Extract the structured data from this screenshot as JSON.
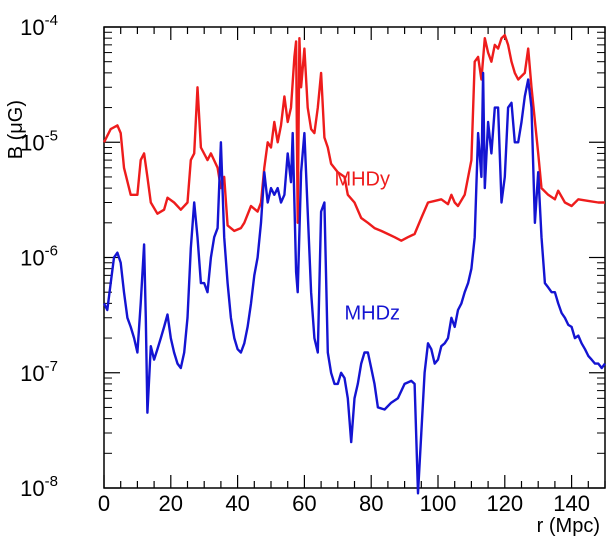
{
  "chart_data": {
    "type": "line",
    "xlabel": "r (Mpc)",
    "ylabel": "B (μG)",
    "xlim": [
      0,
      150
    ],
    "ylim": [
      1e-08,
      0.0001
    ],
    "yscale": "log",
    "grid": false,
    "x_ticks": [
      {
        "value": 0,
        "label": "0"
      },
      {
        "value": 20,
        "label": "20"
      },
      {
        "value": 40,
        "label": "40"
      },
      {
        "value": 60,
        "label": "60"
      },
      {
        "value": 80,
        "label": "80"
      },
      {
        "value": 100,
        "label": "100"
      },
      {
        "value": 120,
        "label": "120"
      },
      {
        "value": 140,
        "label": "140"
      }
    ],
    "y_ticks": [
      {
        "value": 1e-08,
        "base": "10",
        "exp": "-8"
      },
      {
        "value": 1e-07,
        "base": "10",
        "exp": "-7"
      },
      {
        "value": 1e-06,
        "base": "10",
        "exp": "-6"
      },
      {
        "value": 1e-05,
        "base": "10",
        "exp": "-5"
      },
      {
        "value": 0.0001,
        "base": "10",
        "exp": "-4"
      }
    ],
    "series": [
      {
        "name": "MHDy",
        "color": "#ee1c1c",
        "label_at": [
          69,
          4.2e-06
        ],
        "points": [
          [
            0,
            1e-05
          ],
          [
            2,
            1.3e-05
          ],
          [
            4,
            1.4e-05
          ],
          [
            5,
            1.2e-05
          ],
          [
            6,
            6e-06
          ],
          [
            8,
            3.5e-06
          ],
          [
            10,
            3.5e-06
          ],
          [
            11,
            7e-06
          ],
          [
            12,
            8e-06
          ],
          [
            13,
            5e-06
          ],
          [
            14,
            3e-06
          ],
          [
            16,
            2.4e-06
          ],
          [
            18,
            2.6e-06
          ],
          [
            19,
            3.3e-06
          ],
          [
            21,
            3e-06
          ],
          [
            23,
            2.6e-06
          ],
          [
            25,
            3e-06
          ],
          [
            26,
            7e-06
          ],
          [
            27,
            8e-06
          ],
          [
            28,
            3e-05
          ],
          [
            29,
            9e-06
          ],
          [
            31,
            7e-06
          ],
          [
            32,
            8e-06
          ],
          [
            34,
            6e-06
          ],
          [
            35,
            4e-06
          ],
          [
            36,
            5e-06
          ],
          [
            37,
            1.9e-06
          ],
          [
            39,
            1.7e-06
          ],
          [
            41,
            1.8e-06
          ],
          [
            42,
            2e-06
          ],
          [
            44,
            2.8e-06
          ],
          [
            46,
            2.5e-06
          ],
          [
            47,
            3e-06
          ],
          [
            48,
            6e-06
          ],
          [
            49,
            1e-05
          ],
          [
            50,
            9e-06
          ],
          [
            51,
            1.5e-05
          ],
          [
            52,
            1e-05
          ],
          [
            53,
            1.4e-05
          ],
          [
            54,
            2.5e-05
          ],
          [
            55,
            1.5e-05
          ],
          [
            56,
            2e-05
          ],
          [
            57,
            5.5e-05
          ],
          [
            57.5,
            7.5e-05
          ],
          [
            58,
            2e-06
          ],
          [
            58.5,
            8e-05
          ],
          [
            59,
            3e-05
          ],
          [
            60,
            6.5e-05
          ],
          [
            61,
            2e-05
          ],
          [
            62,
            1.3e-05
          ],
          [
            63,
            1.2e-05
          ],
          [
            64,
            2e-05
          ],
          [
            65,
            4e-05
          ],
          [
            66,
            1.1e-05
          ],
          [
            67,
            9e-06
          ],
          [
            68,
            6.5e-06
          ],
          [
            70,
            5.5e-06
          ],
          [
            72,
            5e-06
          ],
          [
            73,
            3.5e-06
          ],
          [
            75,
            3e-06
          ],
          [
            77,
            2.2e-06
          ],
          [
            79,
            2e-06
          ],
          [
            81,
            1.8e-06
          ],
          [
            83,
            1.7e-06
          ],
          [
            85,
            1.6e-06
          ],
          [
            87,
            1.5e-06
          ],
          [
            89,
            1.4e-06
          ],
          [
            91,
            1.5e-06
          ],
          [
            93,
            1.6e-06
          ],
          [
            95,
            2.2e-06
          ],
          [
            97,
            3e-06
          ],
          [
            99,
            3.1e-06
          ],
          [
            101,
            3.2e-06
          ],
          [
            103,
            2.9e-06
          ],
          [
            104,
            3.5e-06
          ],
          [
            105,
            3e-06
          ],
          [
            106,
            2.8e-06
          ],
          [
            108,
            3.5e-06
          ],
          [
            110,
            7e-06
          ],
          [
            111,
            5e-05
          ],
          [
            112,
            5.5e-05
          ],
          [
            113,
            3.5e-05
          ],
          [
            114,
            8e-05
          ],
          [
            115,
            6e-05
          ],
          [
            116,
            5e-05
          ],
          [
            117,
            7e-05
          ],
          [
            118,
            6.5e-05
          ],
          [
            119,
            8e-05
          ],
          [
            120,
            8.5e-05
          ],
          [
            121,
            7e-05
          ],
          [
            122,
            5e-05
          ],
          [
            123,
            4e-05
          ],
          [
            124,
            3.5e-05
          ],
          [
            126,
            4e-05
          ],
          [
            127,
            6.5e-05
          ],
          [
            128,
            3e-05
          ],
          [
            130,
            8e-06
          ],
          [
            131,
            4e-06
          ],
          [
            133,
            3.5e-06
          ],
          [
            135,
            3.2e-06
          ],
          [
            136,
            3.8e-06
          ],
          [
            138,
            3e-06
          ],
          [
            140,
            2.8e-06
          ],
          [
            142,
            3.2e-06
          ],
          [
            145,
            3.1e-06
          ],
          [
            148,
            3e-06
          ],
          [
            150,
            3e-06
          ]
        ]
      },
      {
        "name": "MHDz",
        "color": "#1414d2",
        "label_at": [
          72,
          2.9e-07
        ],
        "points": [
          [
            0,
            4e-07
          ],
          [
            1,
            3.5e-07
          ],
          [
            2,
            6e-07
          ],
          [
            3,
            1e-06
          ],
          [
            4,
            1.1e-06
          ],
          [
            5,
            9e-07
          ],
          [
            6,
            5e-07
          ],
          [
            7,
            3e-07
          ],
          [
            8,
            2.5e-07
          ],
          [
            9,
            2e-07
          ],
          [
            10,
            1.5e-07
          ],
          [
            11,
            4e-07
          ],
          [
            12,
            1.3e-06
          ],
          [
            12.5,
            3e-07
          ],
          [
            13,
            4.5e-08
          ],
          [
            14,
            1.7e-07
          ],
          [
            15,
            1.3e-07
          ],
          [
            16,
            1.6e-07
          ],
          [
            17,
            2e-07
          ],
          [
            18,
            2.5e-07
          ],
          [
            19,
            3.2e-07
          ],
          [
            20,
            2e-07
          ],
          [
            21,
            1.5e-07
          ],
          [
            22,
            1.2e-07
          ],
          [
            23,
            1.1e-07
          ],
          [
            24,
            1.5e-07
          ],
          [
            25,
            3e-07
          ],
          [
            26,
            1.2e-06
          ],
          [
            27,
            3e-06
          ],
          [
            28,
            1.5e-06
          ],
          [
            29,
            6e-07
          ],
          [
            30,
            6e-07
          ],
          [
            31,
            5e-07
          ],
          [
            32,
            1e-06
          ],
          [
            33,
            1.5e-06
          ],
          [
            34,
            1.8e-06
          ],
          [
            35,
            1e-05
          ],
          [
            36,
            1.5e-06
          ],
          [
            37,
            6e-07
          ],
          [
            38,
            3e-07
          ],
          [
            39,
            2e-07
          ],
          [
            40,
            1.6e-07
          ],
          [
            41,
            1.5e-07
          ],
          [
            42,
            1.8e-07
          ],
          [
            43,
            2.5e-07
          ],
          [
            44,
            4e-07
          ],
          [
            45,
            7e-07
          ],
          [
            46,
            1e-06
          ],
          [
            47,
            2e-06
          ],
          [
            48,
            5.5e-06
          ],
          [
            49,
            3e-06
          ],
          [
            50,
            4e-06
          ],
          [
            51,
            3.5e-06
          ],
          [
            52,
            4e-06
          ],
          [
            53,
            3e-06
          ],
          [
            54,
            3.5e-06
          ],
          [
            55,
            8e-06
          ],
          [
            56,
            4.5e-06
          ],
          [
            56.5,
            1.2e-05
          ],
          [
            57,
            3e-06
          ],
          [
            57.5,
            7.5e-07
          ],
          [
            58,
            5e-07
          ],
          [
            59,
            5.5e-06
          ],
          [
            60,
            1.2e-05
          ],
          [
            61,
            2.5e-06
          ],
          [
            62,
            5e-07
          ],
          [
            63,
            2e-07
          ],
          [
            64,
            1.5e-07
          ],
          [
            65,
            2.5e-06
          ],
          [
            66,
            3e-06
          ],
          [
            67,
            1.5e-07
          ],
          [
            68,
            1e-07
          ],
          [
            69,
            8e-08
          ],
          [
            70,
            8e-08
          ],
          [
            71,
            1e-07
          ],
          [
            72,
            9e-08
          ],
          [
            73,
            6e-08
          ],
          [
            74,
            2.5e-08
          ],
          [
            75,
            6e-08
          ],
          [
            76,
            8e-08
          ],
          [
            77,
            1.2e-07
          ],
          [
            78,
            1.5e-07
          ],
          [
            79,
            1.5e-07
          ],
          [
            80,
            1.1e-07
          ],
          [
            81,
            8e-08
          ],
          [
            82,
            5e-08
          ],
          [
            84,
            4.8e-08
          ],
          [
            86,
            5.5e-08
          ],
          [
            88,
            6e-08
          ],
          [
            90,
            8e-08
          ],
          [
            92,
            8.5e-08
          ],
          [
            93,
            8e-08
          ],
          [
            94,
            9e-09
          ],
          [
            95,
            3e-08
          ],
          [
            96,
            1e-07
          ],
          [
            97,
            1.8e-07
          ],
          [
            98,
            1.6e-07
          ],
          [
            99,
            1.2e-07
          ],
          [
            100,
            1.3e-07
          ],
          [
            101,
            1.7e-07
          ],
          [
            102,
            1.8e-07
          ],
          [
            103,
            2e-07
          ],
          [
            104,
            3e-07
          ],
          [
            105,
            2.5e-07
          ],
          [
            106,
            3.5e-07
          ],
          [
            107,
            4e-07
          ],
          [
            108,
            5e-07
          ],
          [
            109,
            6e-07
          ],
          [
            110,
            8e-07
          ],
          [
            111,
            1.5e-06
          ],
          [
            112,
            1.2e-05
          ],
          [
            113,
            5e-06
          ],
          [
            113.5,
            4e-05
          ],
          [
            114,
            4e-06
          ],
          [
            115,
            1.5e-05
          ],
          [
            116,
            8e-06
          ],
          [
            117,
            2e-05
          ],
          [
            118,
            2e-05
          ],
          [
            119,
            3e-06
          ],
          [
            120,
            5e-06
          ],
          [
            121,
            2e-05
          ],
          [
            122,
            2.2e-05
          ],
          [
            123,
            1e-05
          ],
          [
            124,
            1e-05
          ],
          [
            125,
            1.5e-05
          ],
          [
            126,
            2.5e-05
          ],
          [
            127,
            3.5e-05
          ],
          [
            128,
            2e-05
          ],
          [
            129,
            2e-06
          ],
          [
            130,
            5.5e-06
          ],
          [
            131,
            1.5e-06
          ],
          [
            132,
            6e-07
          ],
          [
            133,
            5.5e-07
          ],
          [
            134,
            5e-07
          ],
          [
            135,
            5e-07
          ],
          [
            136,
            4e-07
          ],
          [
            137,
            3.3e-07
          ],
          [
            138,
            3e-07
          ],
          [
            139,
            2.6e-07
          ],
          [
            140,
            2.5e-07
          ],
          [
            141,
            2e-07
          ],
          [
            142,
            2.1e-07
          ],
          [
            143,
            1.8e-07
          ],
          [
            144,
            1.6e-07
          ],
          [
            145,
            1.4e-07
          ],
          [
            146,
            1.3e-07
          ],
          [
            147,
            1.2e-07
          ],
          [
            148,
            1.2e-07
          ],
          [
            149,
            1.1e-07
          ],
          [
            150,
            1.2e-07
          ]
        ]
      }
    ]
  }
}
